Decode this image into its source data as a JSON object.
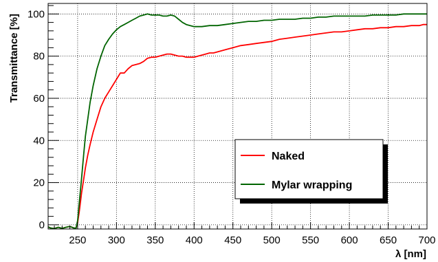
{
  "chart_data": {
    "type": "line",
    "title": "",
    "xlabel": "λ [nm]",
    "ylabel": "Transmittance [%]",
    "xlim": [
      212,
      700
    ],
    "ylim": [
      -2,
      105
    ],
    "grid": true,
    "legend_position": "lower-right",
    "x_ticks": [
      250,
      300,
      350,
      400,
      450,
      500,
      550,
      600,
      650,
      700
    ],
    "y_ticks": [
      0,
      20,
      40,
      60,
      80,
      100
    ],
    "series": [
      {
        "name": "Naked",
        "color": "#ff0000",
        "x": [
          212,
          215,
          220,
          225,
          230,
          235,
          240,
          245,
          248,
          250,
          252,
          255,
          258,
          260,
          263,
          266,
          270,
          275,
          280,
          285,
          290,
          295,
          300,
          305,
          310,
          315,
          320,
          325,
          330,
          335,
          340,
          345,
          350,
          355,
          360,
          365,
          370,
          375,
          380,
          385,
          390,
          395,
          400,
          405,
          410,
          415,
          420,
          425,
          430,
          440,
          450,
          460,
          470,
          480,
          490,
          500,
          510,
          520,
          530,
          540,
          550,
          560,
          570,
          580,
          590,
          600,
          610,
          620,
          630,
          640,
          650,
          660,
          670,
          680,
          690,
          695,
          700
        ],
        "y": [
          -1,
          -1.5,
          -1.8,
          -1.2,
          -1.7,
          -1.2,
          -0.8,
          -1.5,
          -1.6,
          1,
          6,
          15,
          22,
          27,
          33,
          38,
          44,
          50,
          56,
          60,
          63,
          66,
          69,
          72,
          72,
          74,
          75.5,
          76,
          76.5,
          77.5,
          79,
          79.5,
          79.5,
          80,
          80.5,
          81,
          81,
          80.5,
          80,
          80,
          79.5,
          79.5,
          79.5,
          80,
          80.5,
          81,
          81.5,
          81.5,
          82,
          83,
          84,
          85,
          85.5,
          86,
          86.5,
          87,
          88,
          88.5,
          89,
          89.5,
          90,
          90.5,
          91,
          91.5,
          91.5,
          92,
          92.5,
          93,
          93,
          93.5,
          93.5,
          94,
          94,
          94.5,
          94.5,
          95,
          95
        ]
      },
      {
        "name": "Mylar wrapping",
        "color": "#006400",
        "x": [
          212,
          215,
          220,
          225,
          230,
          235,
          240,
          245,
          248,
          250,
          252,
          255,
          258,
          260,
          263,
          266,
          270,
          275,
          280,
          285,
          290,
          295,
          300,
          305,
          310,
          315,
          320,
          325,
          330,
          335,
          340,
          345,
          350,
          355,
          360,
          365,
          370,
          375,
          380,
          385,
          390,
          395,
          400,
          410,
          420,
          430,
          440,
          450,
          460,
          470,
          480,
          490,
          500,
          510,
          520,
          530,
          540,
          550,
          560,
          570,
          580,
          590,
          600,
          610,
          620,
          630,
          640,
          650,
          660,
          670,
          680,
          690,
          700
        ],
        "y": [
          -1,
          -1.5,
          -1.8,
          -1.2,
          -1.7,
          -1.2,
          -0.8,
          -1.5,
          -1.6,
          2,
          10,
          22,
          34,
          42,
          50,
          58,
          66,
          74,
          80,
          85,
          88,
          90.5,
          92.5,
          94,
          95,
          96,
          97,
          98,
          99,
          99.5,
          100,
          99.5,
          99.5,
          99.5,
          99,
          99,
          99.5,
          99,
          97.5,
          96,
          95,
          94.5,
          94,
          94,
          94.5,
          94.5,
          95,
          95.5,
          96,
          96.5,
          96.5,
          97,
          97,
          97.5,
          97.5,
          97.5,
          98,
          98,
          98.5,
          98.5,
          99,
          99,
          99,
          99,
          99,
          99.5,
          99.5,
          99.5,
          99.5,
          100,
          100,
          100,
          100
        ]
      }
    ]
  }
}
